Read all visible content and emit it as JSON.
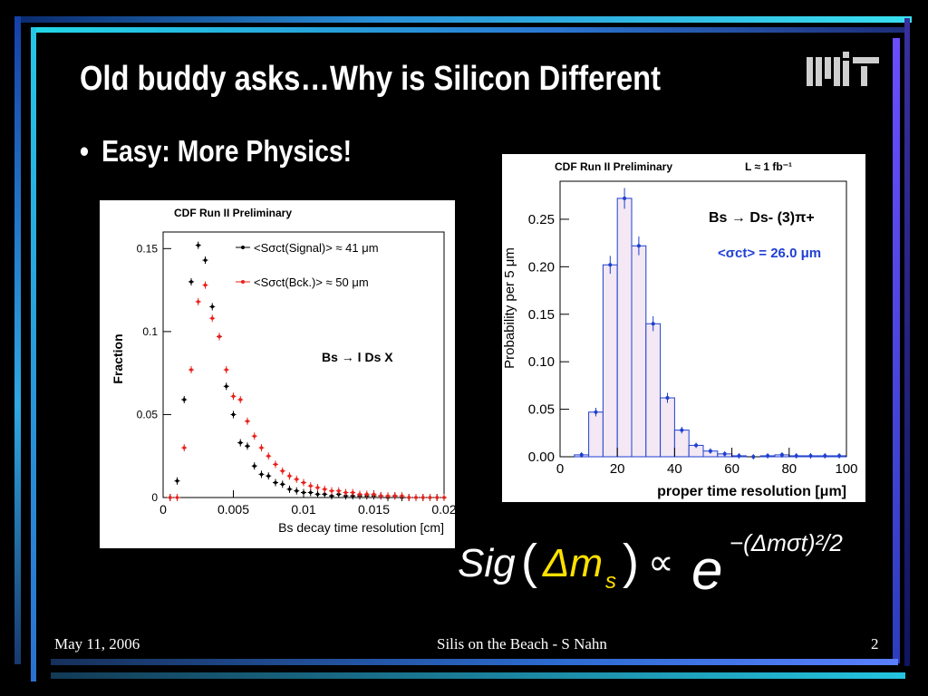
{
  "slide": {
    "title": "Old buddy asks…Why is Silicon Different",
    "bullet": "Easy: More Physics!",
    "bullet_symbol": "•",
    "logo": "mit-logo",
    "formula": {
      "lhs": "Sig",
      "arg": "Δm",
      "arg_sub": "s",
      "proportional": "∝",
      "base": "e",
      "exponent": "−(Δmσt)²/2"
    }
  },
  "footer": {
    "date": "May 11, 2006",
    "center": "Silis on the Beach - S Nahn",
    "page": "2"
  },
  "chart_data": [
    {
      "type": "scatter",
      "header": "CDF Run II Preliminary",
      "xlabel": "Bs decay time resolution [cm]",
      "ylabel": "Fraction",
      "xlim": [
        0,
        0.02
      ],
      "ylim": [
        0,
        0.16
      ],
      "x_ticks": [
        "0",
        "0.005",
        "0.01",
        "0.015",
        "0.02"
      ],
      "y_ticks": [
        "0",
        "0.05",
        "0.1",
        "0.15"
      ],
      "annotation": "Bs → l Ds X",
      "series": [
        {
          "name": "<Sσct(Signal)> ≈ 41 μm",
          "color": "#000000",
          "x": [
            0.0005,
            0.001,
            0.0015,
            0.002,
            0.0025,
            0.003,
            0.0035,
            0.004,
            0.0045,
            0.005,
            0.0055,
            0.006,
            0.0065,
            0.007,
            0.0075,
            0.008,
            0.0085,
            0.009,
            0.0095,
            0.01,
            0.0105,
            0.011,
            0.0115,
            0.012,
            0.0125,
            0.013,
            0.0135,
            0.014,
            0.0145,
            0.015,
            0.0155,
            0.016,
            0.0165,
            0.017,
            0.0175,
            0.018,
            0.0185,
            0.019,
            0.0195,
            0.02
          ],
          "y": [
            0,
            0.01,
            0.059,
            0.13,
            0.152,
            0.143,
            0.115,
            0.097,
            0.067,
            0.05,
            0.033,
            0.031,
            0.019,
            0.014,
            0.013,
            0.009,
            0.008,
            0.005,
            0.004,
            0.003,
            0.003,
            0.002,
            0.002,
            0.001,
            0.002,
            0.001,
            0.001,
            0.001,
            0.001,
            0.001,
            0.001,
            0,
            0.001,
            0,
            0,
            0,
            0,
            0,
            0,
            0
          ]
        },
        {
          "name": "<Sσct(Bck.)> ≈ 50 μm",
          "color": "#e8211b",
          "x": [
            0.0005,
            0.001,
            0.0015,
            0.002,
            0.0025,
            0.003,
            0.0035,
            0.004,
            0.0045,
            0.005,
            0.0055,
            0.006,
            0.0065,
            0.007,
            0.0075,
            0.008,
            0.0085,
            0.009,
            0.0095,
            0.01,
            0.0105,
            0.011,
            0.0115,
            0.012,
            0.0125,
            0.013,
            0.0135,
            0.014,
            0.0145,
            0.015,
            0.0155,
            0.016,
            0.0165,
            0.017,
            0.0175,
            0.018,
            0.0185,
            0.019,
            0.0195,
            0.02
          ],
          "y": [
            0,
            0,
            0.03,
            0.077,
            0.118,
            0.128,
            0.108,
            0.097,
            0.077,
            0.061,
            0.059,
            0.046,
            0.037,
            0.03,
            0.025,
            0.02,
            0.016,
            0.013,
            0.011,
            0.009,
            0.007,
            0.006,
            0.005,
            0.004,
            0.004,
            0.003,
            0.003,
            0.002,
            0.002,
            0.002,
            0.001,
            0.001,
            0.001,
            0.001,
            0,
            0,
            0,
            0,
            0,
            0
          ]
        }
      ]
    },
    {
      "type": "bar",
      "header": "CDF Run II Preliminary",
      "lumi": "L ≈ 1 fb⁻¹",
      "xlabel": "proper time resolution [μm]",
      "ylabel": "Probability per 5 μm",
      "xlim": [
        0,
        100
      ],
      "ylim": [
        0,
        0.29
      ],
      "x_ticks": [
        "0",
        "20",
        "40",
        "60",
        "80",
        "100"
      ],
      "y_ticks": [
        "0.00",
        "0.05",
        "0.10",
        "0.15",
        "0.20",
        "0.25"
      ],
      "annotation": "Bs → Ds- (3)π+",
      "annotation2": "<σct> = 26.0 μm",
      "bin_width": 5,
      "bin_starts": [
        5,
        10,
        15,
        20,
        25,
        30,
        35,
        40,
        45,
        50,
        55,
        60,
        65,
        70,
        75,
        80,
        85,
        90,
        95
      ],
      "values": [
        0.002,
        0.047,
        0.202,
        0.272,
        0.222,
        0.14,
        0.062,
        0.028,
        0.012,
        0.006,
        0.003,
        0.001,
        0,
        0.001,
        0.002,
        0.001,
        0.001,
        0.001,
        0.001
      ]
    }
  ]
}
